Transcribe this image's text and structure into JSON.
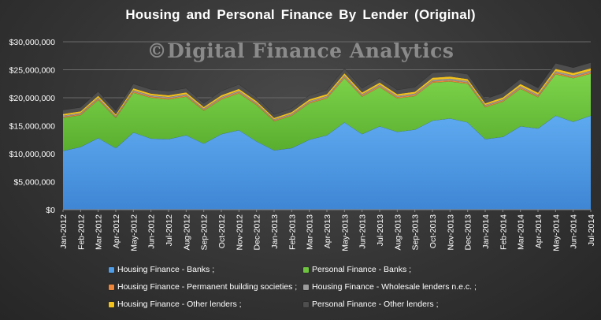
{
  "title": "Housing and Personal Finance By Lender (Original)",
  "watermark": "©Digital Finance Analytics",
  "chart_data": {
    "type": "area",
    "stacked": true,
    "title": "Housing and Personal Finance By Lender (Original)",
    "xlabel": "",
    "ylabel": "",
    "ylim": [
      0,
      30000000
    ],
    "yticks": [
      0,
      5000000,
      10000000,
      15000000,
      20000000,
      25000000,
      30000000
    ],
    "ytick_labels": [
      "$0",
      "$5,000,000",
      "$10,000,000",
      "$15,000,000",
      "$20,000,000",
      "$25,000,000",
      "$30,000,000"
    ],
    "grid": true,
    "legend_position": "bottom",
    "categories": [
      "Jan-2012",
      "Feb-2012",
      "Mar-2012",
      "Apr-2012",
      "May-2012",
      "Jun-2012",
      "Jul-2012",
      "Aug-2012",
      "Sep-2012",
      "Oct-2012",
      "Nov-2012",
      "Dec-2012",
      "Jan-2013",
      "Feb-2013",
      "Mar-2013",
      "Apr-2013",
      "May-2013",
      "Jun-2013",
      "Jul-2013",
      "Aug-2013",
      "Sep-2013",
      "Oct-2013",
      "Nov-2013",
      "Dec-2013",
      "Jan-2014",
      "Feb-2014",
      "Mar-2014",
      "Apr-2014",
      "May-2014",
      "Jun-2014",
      "Jul-2014"
    ],
    "series": [
      {
        "name": "Housing Finance - Banks ;",
        "color": "#4f9de6",
        "values": [
          10500000,
          11200000,
          12800000,
          11000000,
          13800000,
          12700000,
          12600000,
          13300000,
          11800000,
          13500000,
          14200000,
          12200000,
          10600000,
          11000000,
          12500000,
          13300000,
          15600000,
          13500000,
          14900000,
          13900000,
          14300000,
          15900000,
          16300000,
          15600000,
          12600000,
          13000000,
          14900000,
          14500000,
          16800000,
          15700000,
          16800000
        ]
      },
      {
        "name": "Personal Finance - Banks ;",
        "color": "#6ec43e",
        "values": [
          5900000,
          5700000,
          6800000,
          5400000,
          7100000,
          7300000,
          7100000,
          6900000,
          5900000,
          6200000,
          6600000,
          6500000,
          5200000,
          5800000,
          6500000,
          6600000,
          7900000,
          6700000,
          7000000,
          6000000,
          6000000,
          6800000,
          6600000,
          6900000,
          5700000,
          6300000,
          6700000,
          5600000,
          7400000,
          7800000,
          7500000
        ]
      },
      {
        "name": "Housing Finance - Permanent building societies ;",
        "color": "#f0863a",
        "values": [
          180000,
          170000,
          200000,
          160000,
          200000,
          190000,
          190000,
          190000,
          170000,
          190000,
          200000,
          180000,
          150000,
          160000,
          180000,
          190000,
          220000,
          190000,
          210000,
          190000,
          200000,
          220000,
          220000,
          210000,
          180000,
          190000,
          220000,
          200000,
          240000,
          230000,
          240000
        ]
      },
      {
        "name": "Housing Finance - Wholesale lenders n.e.c. ;",
        "color": "#9b9b9b",
        "values": [
          220000,
          210000,
          240000,
          200000,
          250000,
          230000,
          230000,
          240000,
          210000,
          240000,
          250000,
          220000,
          190000,
          200000,
          220000,
          230000,
          270000,
          230000,
          250000,
          230000,
          240000,
          270000,
          270000,
          260000,
          220000,
          230000,
          260000,
          250000,
          300000,
          280000,
          300000
        ]
      },
      {
        "name": "Housing Finance - Other lenders ;",
        "color": "#f3c21d",
        "values": [
          300000,
          300000,
          330000,
          280000,
          340000,
          320000,
          320000,
          330000,
          290000,
          330000,
          340000,
          310000,
          270000,
          290000,
          320000,
          330000,
          380000,
          330000,
          360000,
          330000,
          340000,
          390000,
          400000,
          380000,
          320000,
          340000,
          380000,
          360000,
          430000,
          410000,
          430000
        ]
      },
      {
        "name": "Personal Finance - Other lenders ;",
        "color": "#4e4e4e",
        "values": [
          700000,
          700000,
          750000,
          650000,
          800000,
          750000,
          750000,
          750000,
          650000,
          750000,
          800000,
          700000,
          600000,
          650000,
          700000,
          750000,
          850000,
          750000,
          800000,
          750000,
          800000,
          900000,
          900000,
          850000,
          750000,
          800000,
          900000,
          850000,
          1000000,
          950000,
          1000000
        ]
      }
    ]
  }
}
